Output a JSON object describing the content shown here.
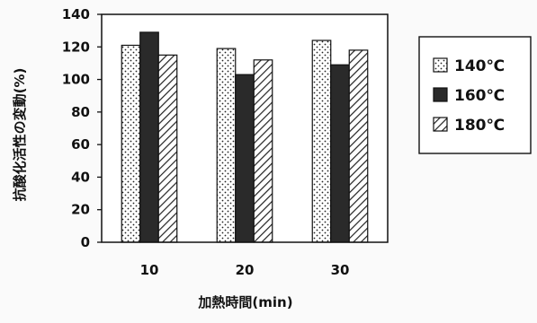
{
  "chart_data": {
    "type": "bar",
    "xlabel": "加熱時間(min)",
    "ylabel": "抗酸化活性の変動(%)",
    "categories": [
      "10",
      "20",
      "30"
    ],
    "ylim": [
      0,
      140
    ],
    "yticks": [
      0,
      20,
      40,
      60,
      80,
      100,
      120,
      140
    ],
    "grid": false,
    "legend_position": "right",
    "series": [
      {
        "name": "140℃",
        "values": [
          121,
          119,
          124
        ],
        "pattern": "dots",
        "color": "#ffffff"
      },
      {
        "name": "160℃",
        "values": [
          129,
          103,
          109
        ],
        "pattern": "solid",
        "color": "#2a2a2a"
      },
      {
        "name": "180℃",
        "values": [
          115,
          112,
          118
        ],
        "pattern": "hatch",
        "color": "#ffffff"
      }
    ]
  }
}
